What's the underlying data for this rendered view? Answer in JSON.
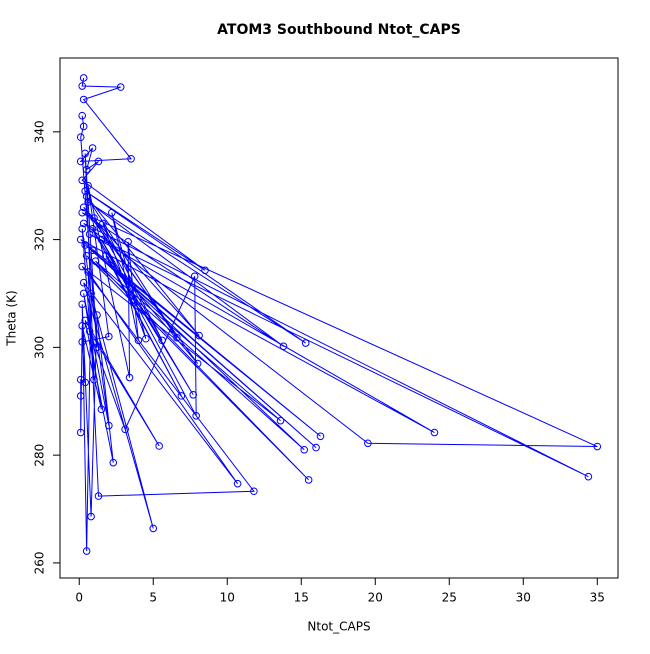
{
  "chart_data": {
    "type": "line",
    "title": "ATOM3 Southbound Ntot_CAPS",
    "x_label": "Ntot_CAPS",
    "y_label": "Theta (K)",
    "x": [
      0.3,
      0.2,
      2.8,
      0.3,
      3.5,
      0.1,
      0.9,
      0.5,
      1.3,
      0.2,
      8.5,
      0.4,
      15.3,
      0.6,
      13.8,
      0.2,
      35,
      19.5,
      0.3,
      34.4,
      0.7,
      24,
      0.1,
      16.3,
      0.4,
      16,
      0.9,
      15.2,
      0.5,
      15.5,
      1.1,
      13.6,
      0.2,
      11.8,
      1.3,
      0.6,
      10.7,
      0.3,
      5,
      0.8,
      0.5,
      0.2,
      0.8,
      1.2,
      2.3,
      0.4,
      5.4,
      0.7,
      3.1,
      7.8,
      7.9,
      1.5,
      7.7,
      0.9,
      6.9,
      1.8,
      8,
      0.3,
      8.1,
      0.5,
      6.6,
      1,
      5.6,
      1.6,
      4.5,
      2.2,
      4,
      3.3,
      3.4,
      0.6,
      2,
      0.2,
      0.4,
      0.1,
      0.1,
      0.1,
      0.2,
      1.5,
      0.3,
      2,
      0.2,
      1,
      0.4,
      1.2,
      0.1,
      0.3,
      0.2
    ],
    "series": [
      {
        "color": "#0000ff",
        "values": [
          350,
          348.5,
          348.3,
          346,
          335,
          334.5,
          337,
          333,
          334.5,
          331,
          314.3,
          329,
          300.8,
          327,
          300.2,
          325,
          281.6,
          282.2,
          323,
          276,
          321,
          284.2,
          320,
          283.5,
          319,
          281.4,
          318,
          281,
          317,
          275.4,
          316,
          286.4,
          315,
          273.3,
          272.4,
          314,
          274.7,
          312,
          266.4,
          310,
          262.2,
          308,
          268.6,
          306,
          278.6,
          305,
          281.7,
          303,
          284.8,
          313.2,
          287.3,
          320,
          291.2,
          322,
          291,
          317,
          297,
          326,
          302.2,
          328,
          301.8,
          324,
          301.3,
          323,
          301.6,
          325,
          301.3,
          319.6,
          294.4,
          330,
          302,
          301,
          293.5,
          294,
          291,
          284.2,
          304,
          288.5,
          310,
          285.5,
          322,
          294,
          336,
          300,
          339,
          341,
          343
        ]
      }
    ],
    "xlim": [
      -1.3,
      36.4
    ],
    "ylim": [
      257.2,
      353.7
    ],
    "xticks": [
      0,
      5,
      10,
      15,
      20,
      25,
      30,
      35
    ],
    "yticks": [
      260,
      280,
      300,
      320,
      340
    ]
  }
}
